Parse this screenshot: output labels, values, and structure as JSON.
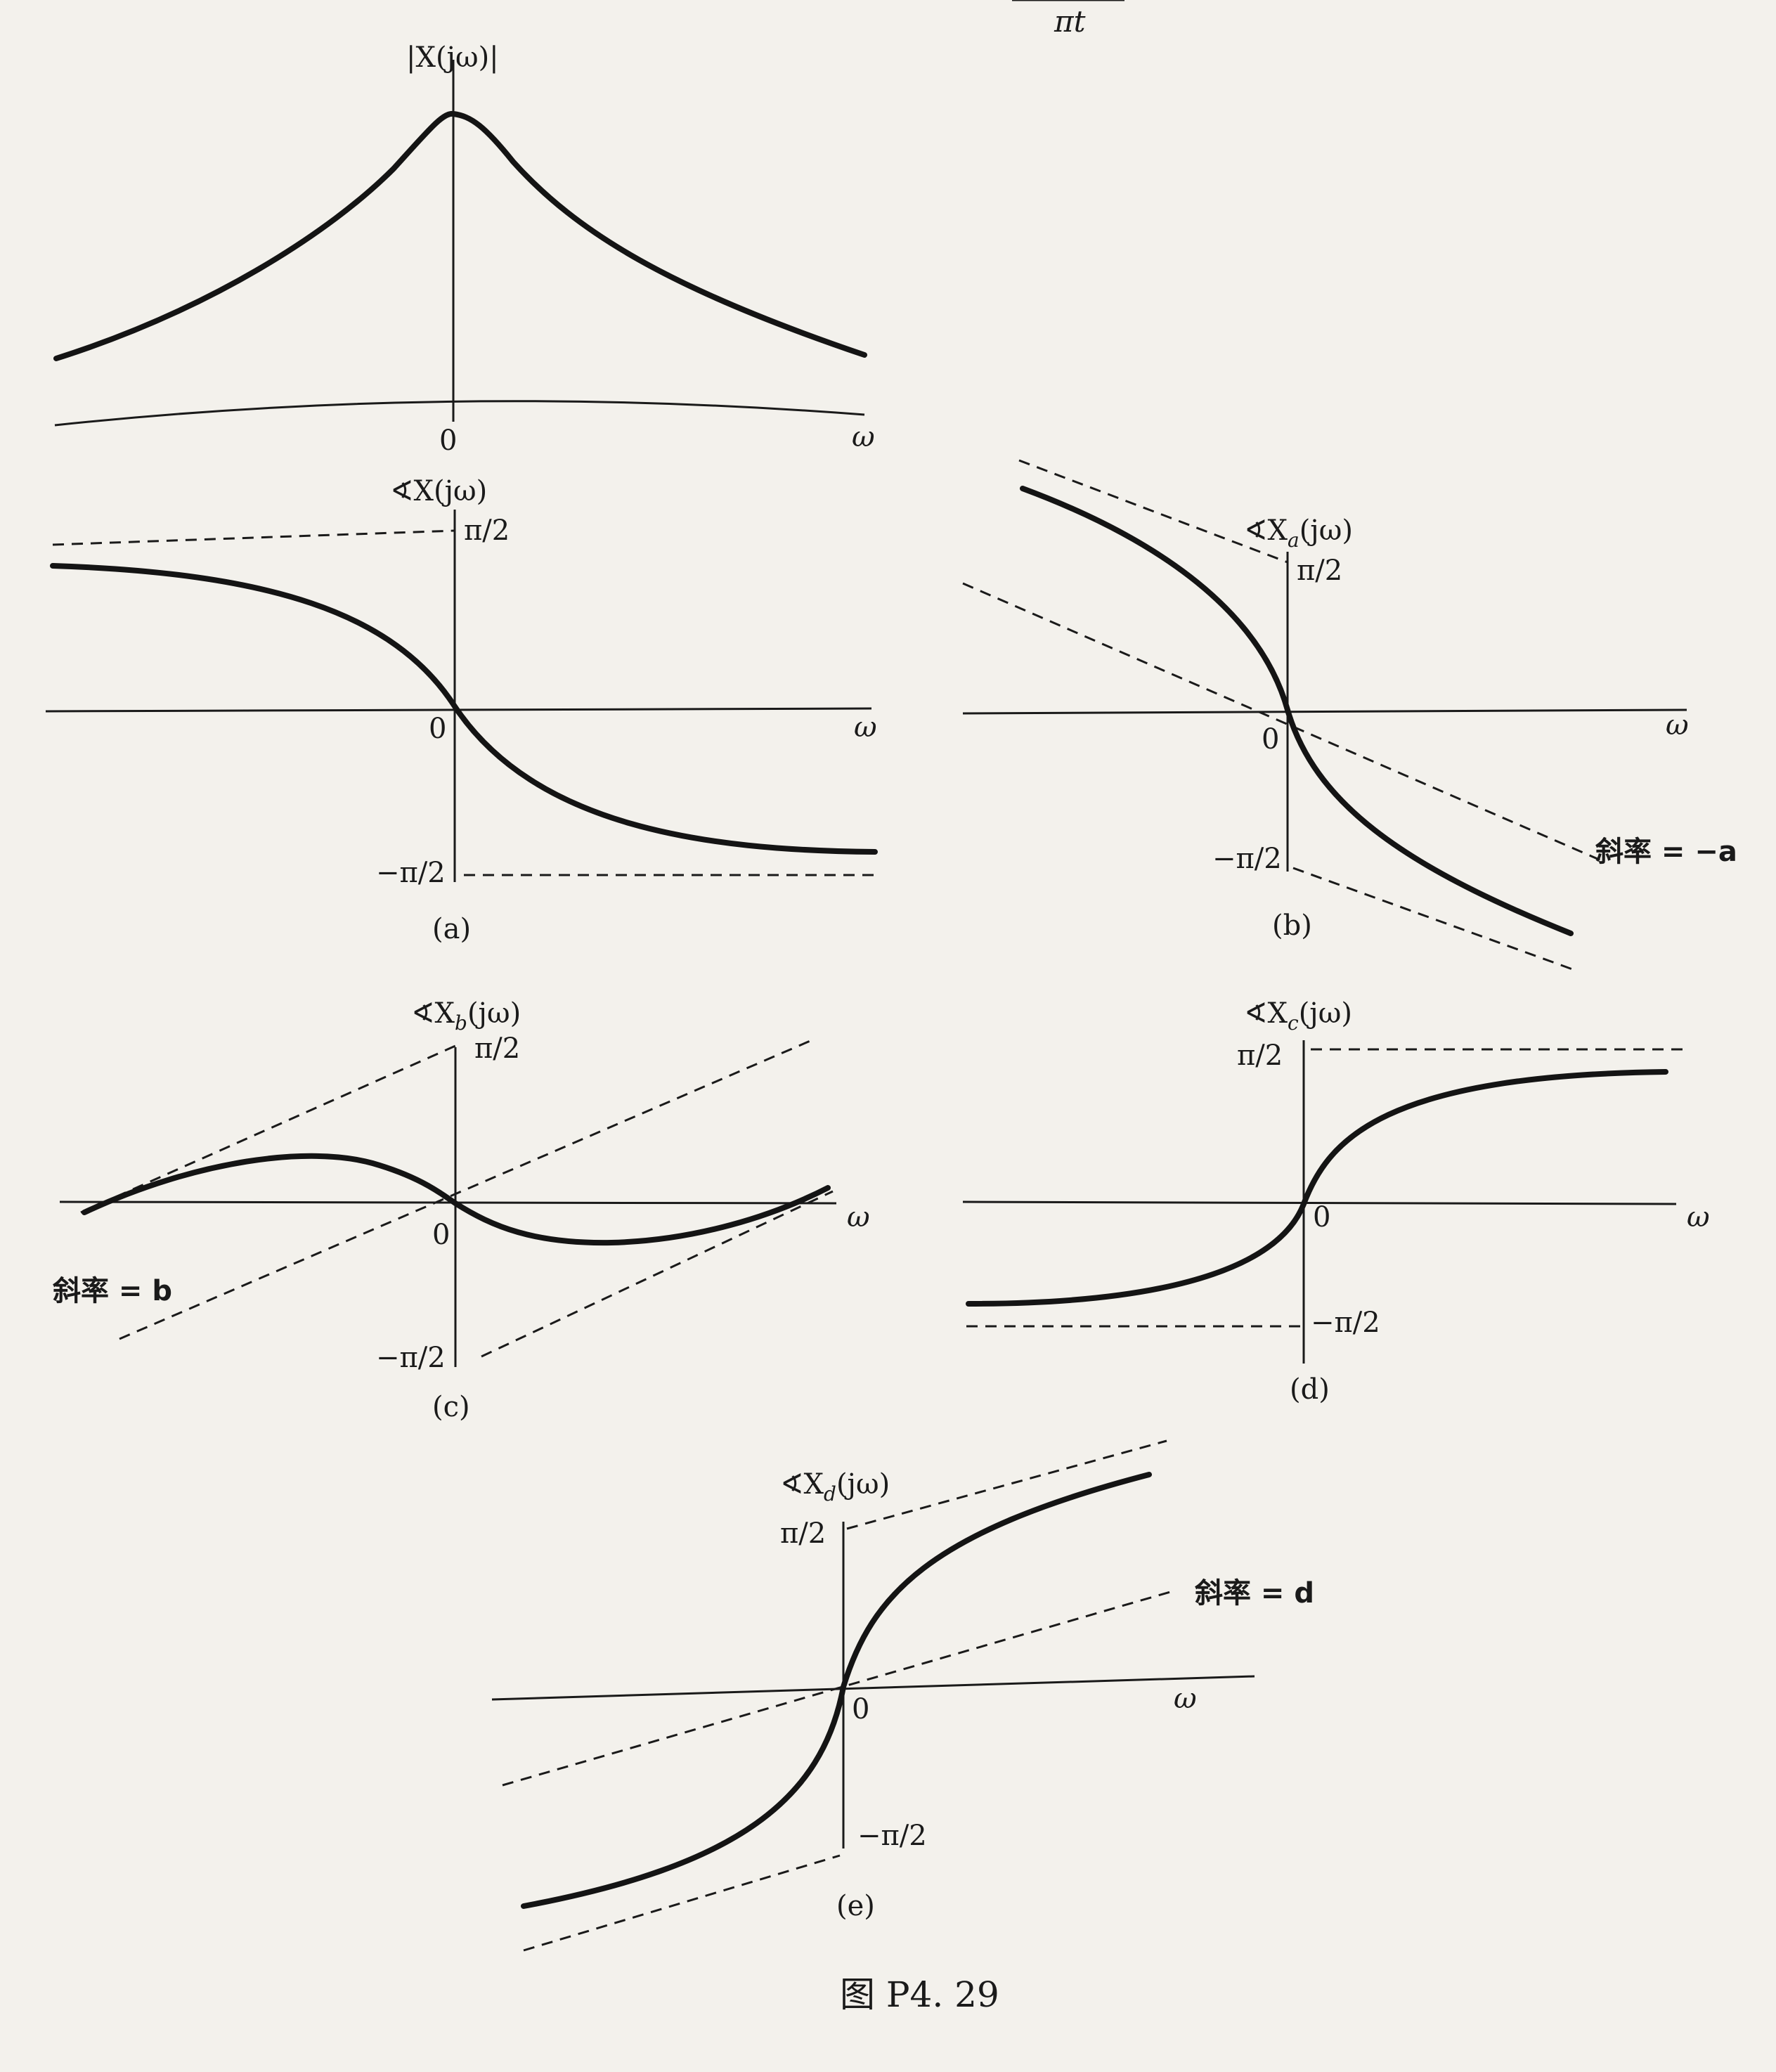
{
  "top_fragment": {
    "text": "πt"
  },
  "panels": {
    "mag": {
      "ylabel": "|X(jω)|",
      "origin": "0",
      "xlabel": "ω"
    },
    "a": {
      "ylabel": "∢X(jω)",
      "top": "π/2",
      "bottom": "−π/2",
      "origin": "0",
      "xlabel": "ω",
      "caption": "(a)"
    },
    "b": {
      "ylabel": "∢X",
      "ylabel_sub": "a",
      "ylabel_tail": "(jω)",
      "top": "π/2",
      "bottom": "−π/2",
      "origin": "0",
      "xlabel": "ω",
      "slope": "斜率 = −a",
      "caption": "(b)"
    },
    "c": {
      "ylabel": "∢X",
      "ylabel_sub": "b",
      "ylabel_tail": "(jω)",
      "top": "π/2",
      "bottom": "−π/2",
      "origin": "0",
      "xlabel": "ω",
      "slope": "斜率 = b",
      "caption": "(c)"
    },
    "d": {
      "ylabel": "∢X",
      "ylabel_sub": "c",
      "ylabel_tail": "(jω)",
      "top": "π/2",
      "bottom": "−π/2",
      "origin": "0",
      "xlabel": "ω",
      "caption": "(d)"
    },
    "e": {
      "ylabel": "∢X",
      "ylabel_sub": "d",
      "ylabel_tail": "(jω)",
      "top": "π/2",
      "bottom": "−π/2",
      "origin": "0",
      "xlabel": "ω",
      "slope": "斜率 = d",
      "caption": "(e)"
    }
  },
  "figure_title": "图 P4. 29"
}
